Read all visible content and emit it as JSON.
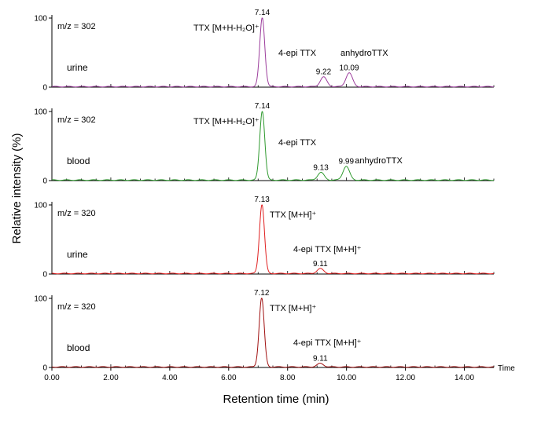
{
  "chart_data": {
    "type": "line",
    "ylabel": "Relative intensity (%)",
    "xlabel": "Retention time (min)",
    "x_unit_label": "Time",
    "xlim": [
      0,
      15
    ],
    "ylim": [
      0,
      100
    ],
    "x_ticks": [
      "0.00",
      "2.00",
      "4.00",
      "6.00",
      "8.00",
      "10.00",
      "12.00",
      "14.00"
    ],
    "y_ticks": [
      "0",
      "100"
    ],
    "panels": [
      {
        "mz_label": "m/z = 302",
        "sample": "urine",
        "color": "#9c3d9c",
        "peaks": [
          {
            "rt": 7.14,
            "height": 100,
            "label": "7.14",
            "annotation": "TTX [M+H-H₂O]⁺"
          },
          {
            "rt": 9.22,
            "height": 14,
            "label": "9.22",
            "annotation": "4-epi TTX"
          },
          {
            "rt": 10.09,
            "height": 20,
            "label": "10.09",
            "annotation": "anhydroTTX"
          }
        ]
      },
      {
        "mz_label": "m/z = 302",
        "sample": "blood",
        "color": "#2f9a2f",
        "peaks": [
          {
            "rt": 7.14,
            "height": 100,
            "label": "7.14",
            "annotation": "TTX [M+H-H₂O]⁺"
          },
          {
            "rt": 9.13,
            "height": 11,
            "label": "9.13",
            "annotation": "4-epi TTX"
          },
          {
            "rt": 9.99,
            "height": 20,
            "label": "9.99",
            "annotation": "anhydroTTX"
          }
        ]
      },
      {
        "mz_label": "m/z = 320",
        "sample": "urine",
        "color": "#e02020",
        "peaks": [
          {
            "rt": 7.13,
            "height": 100,
            "label": "7.13",
            "annotation": "TTX [M+H]⁺"
          },
          {
            "rt": 9.11,
            "height": 7,
            "label": "9.11",
            "annotation": "4-epi TTX [M+H]⁺"
          }
        ]
      },
      {
        "mz_label": "m/z = 320",
        "sample": "blood",
        "color": "#a01010",
        "peaks": [
          {
            "rt": 7.12,
            "height": 100,
            "label": "7.12",
            "annotation": "TTX [M+H]⁺"
          },
          {
            "rt": 9.11,
            "height": 5,
            "label": "9.11",
            "annotation": "4-epi TTX [M+H]⁺"
          }
        ]
      }
    ]
  }
}
